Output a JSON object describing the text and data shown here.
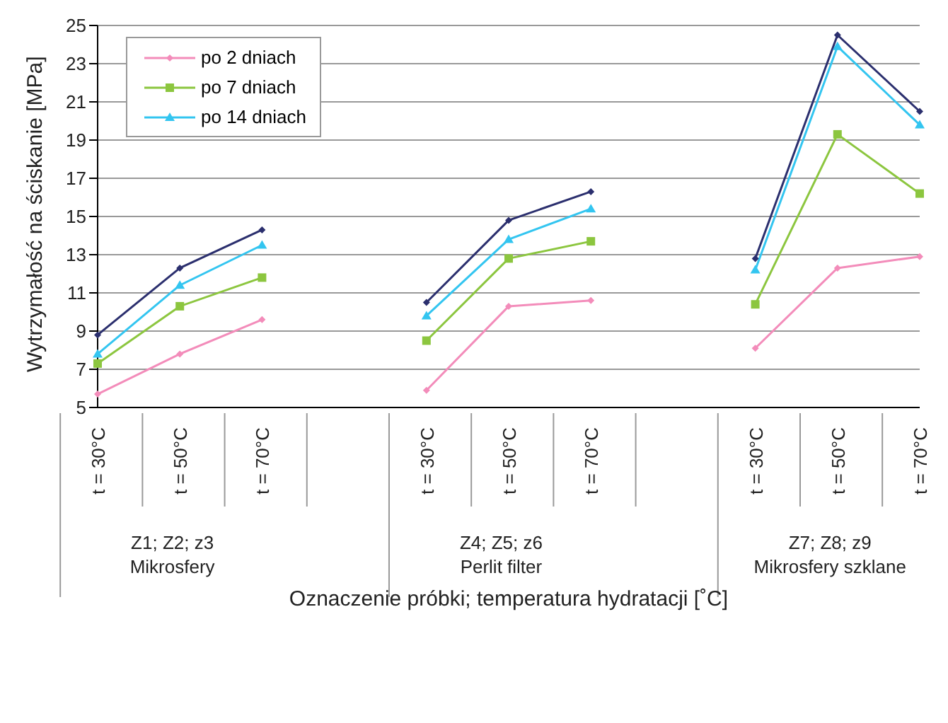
{
  "chart_data": {
    "type": "line",
    "ylabel": "Wytrzymałość na ściskanie [MPa]",
    "xlabel": "Oznaczenie próbki; temperatura hydratacji [˚C]",
    "categories": [
      "t = 30°C",
      "t = 50°C",
      "t = 70°C",
      null,
      "t = 30°C",
      "t = 50°C",
      "t = 70°C",
      null,
      "t = 30°C",
      "t = 50°C",
      "t = 70°C"
    ],
    "annotations": [
      "Z1; Z2; z3\nMikrosfery",
      "Z4; Z5; z6\nPerlit filter",
      "Z7; Z8; z9\nMikrosfery szklane"
    ],
    "series": [
      {
        "name": "po 2 dniach",
        "color": "#f38cba",
        "marker": "diamond",
        "values": [
          5.7,
          7.8,
          9.6,
          null,
          5.9,
          10.3,
          10.6,
          null,
          8.1,
          12.3,
          12.9
        ]
      },
      {
        "name": "po 7 dniach",
        "color": "#8cc63f",
        "marker": "square",
        "values": [
          7.3,
          10.3,
          11.8,
          null,
          8.5,
          12.8,
          13.7,
          null,
          10.4,
          19.3,
          16.2
        ]
      },
      {
        "name": "po 14 dniach",
        "color": "#33c5f0",
        "marker": "triangle",
        "values": [
          7.8,
          11.4,
          13.5,
          null,
          9.8,
          13.8,
          15.4,
          null,
          12.2,
          23.9,
          19.8
        ]
      },
      {
        "color": "#2b2f6e",
        "marker": "diamond",
        "values": [
          8.8,
          12.3,
          14.3,
          null,
          10.5,
          14.8,
          16.3,
          null,
          12.8,
          24.5,
          20.5
        ]
      }
    ],
    "ylim": [
      5,
      25
    ],
    "yticks": [
      5,
      7,
      9,
      11,
      13,
      15,
      17,
      19,
      21,
      23,
      25
    ],
    "grid": "y",
    "legend": "top left",
    "line_style": "solid"
  }
}
